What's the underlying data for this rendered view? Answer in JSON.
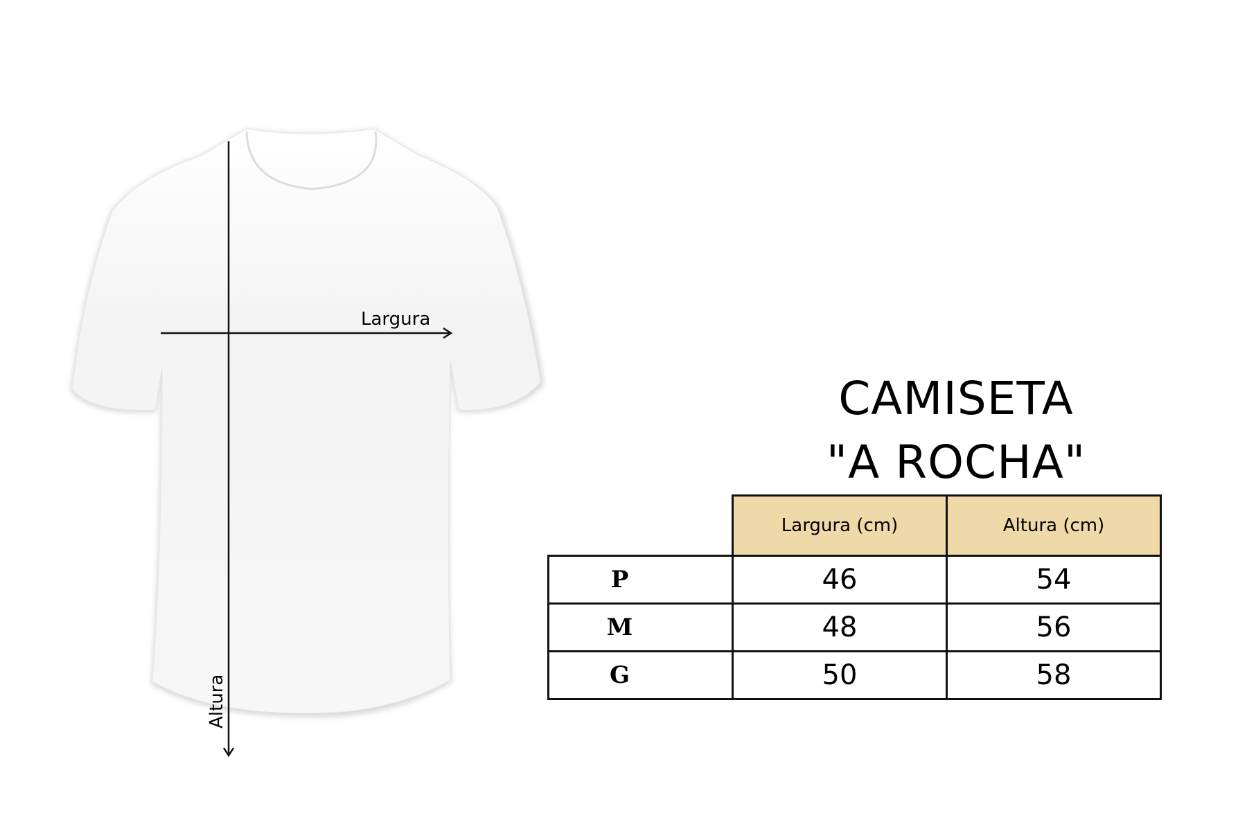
{
  "diagram": {
    "width_label": "Largura",
    "height_label": "Altura"
  },
  "title": {
    "line1": "CAMISETA",
    "line2": "\"A ROCHA\""
  },
  "table": {
    "headers": [
      "Largura (cm)",
      "Altura (cm)"
    ],
    "header_color": "#f0d9a8",
    "rows": [
      {
        "size": "P",
        "largura": "46",
        "altura": "54"
      },
      {
        "size": "M",
        "largura": "48",
        "altura": "56"
      },
      {
        "size": "G",
        "largura": "50",
        "altura": "58"
      }
    ]
  }
}
